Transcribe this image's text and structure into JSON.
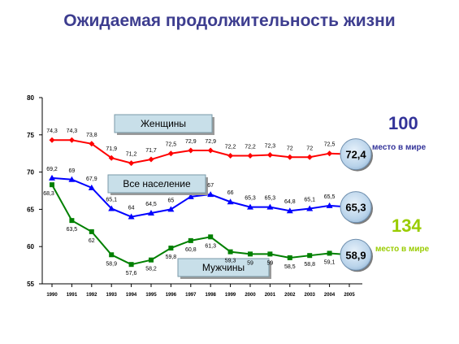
{
  "title": "Ожидаемая продолжительность жизни",
  "chart_data": {
    "type": "line",
    "categories": [
      "1990",
      "1991",
      "1992",
      "1993",
      "1994",
      "1995",
      "1996",
      "1997",
      "1998",
      "1999",
      "2000",
      "2001",
      "2002",
      "2003",
      "2004",
      "2005"
    ],
    "ylim": [
      55,
      80
    ],
    "yticks": [
      55,
      60,
      65,
      70,
      75,
      80
    ],
    "grid": false,
    "series": [
      {
        "name": "Женщины",
        "color": "#ff0000",
        "marker": "diamond",
        "values": [
          74.3,
          74.3,
          73.8,
          71.9,
          71.2,
          71.7,
          72.5,
          72.9,
          72.9,
          72.2,
          72.2,
          72.3,
          72.0,
          72.0,
          72.5,
          72.4
        ],
        "labels": [
          "74,3",
          "74,3",
          "73,8",
          "71,9",
          "71,2",
          "71,7",
          "72,5",
          "72,9",
          "72,9",
          "72,2",
          "72,2",
          "72,3",
          "72",
          "72",
          "72,5",
          ""
        ]
      },
      {
        "name": "Все население",
        "color": "#0000ff",
        "marker": "triangle",
        "values": [
          69.2,
          69.0,
          67.9,
          65.1,
          64.0,
          64.5,
          65.0,
          66.7,
          67.0,
          66.0,
          65.3,
          65.3,
          64.8,
          65.1,
          65.5,
          65.3
        ],
        "labels": [
          "69,2",
          "69",
          "67,9",
          "65,1",
          "64",
          "64,5",
          "65",
          "",
          "67",
          "66",
          "65,3",
          "65,3",
          "64,8",
          "65,1",
          "65,5",
          ""
        ]
      },
      {
        "name": "Мужчины",
        "color": "#008000",
        "marker": "square",
        "values": [
          68.3,
          63.5,
          62.0,
          58.9,
          57.6,
          58.2,
          59.8,
          60.8,
          61.3,
          59.3,
          59.0,
          59.0,
          58.5,
          58.8,
          59.1,
          58.9
        ],
        "labels": [
          "68,3",
          "63,5",
          "62",
          "58,9",
          "57,6",
          "58,2",
          "59,8",
          "60,8",
          "61,3",
          "59,3",
          "59",
          "59",
          "58,5",
          "58,8",
          "59,1",
          ""
        ]
      }
    ],
    "end_badges": [
      "72,4",
      "65,3",
      "58,9"
    ]
  },
  "side": {
    "women_rank": "100",
    "women_rank_label": "место в мире",
    "women_color": "#333399",
    "men_rank": "134",
    "men_rank_label": "место в мире",
    "men_color": "#99cc00"
  }
}
